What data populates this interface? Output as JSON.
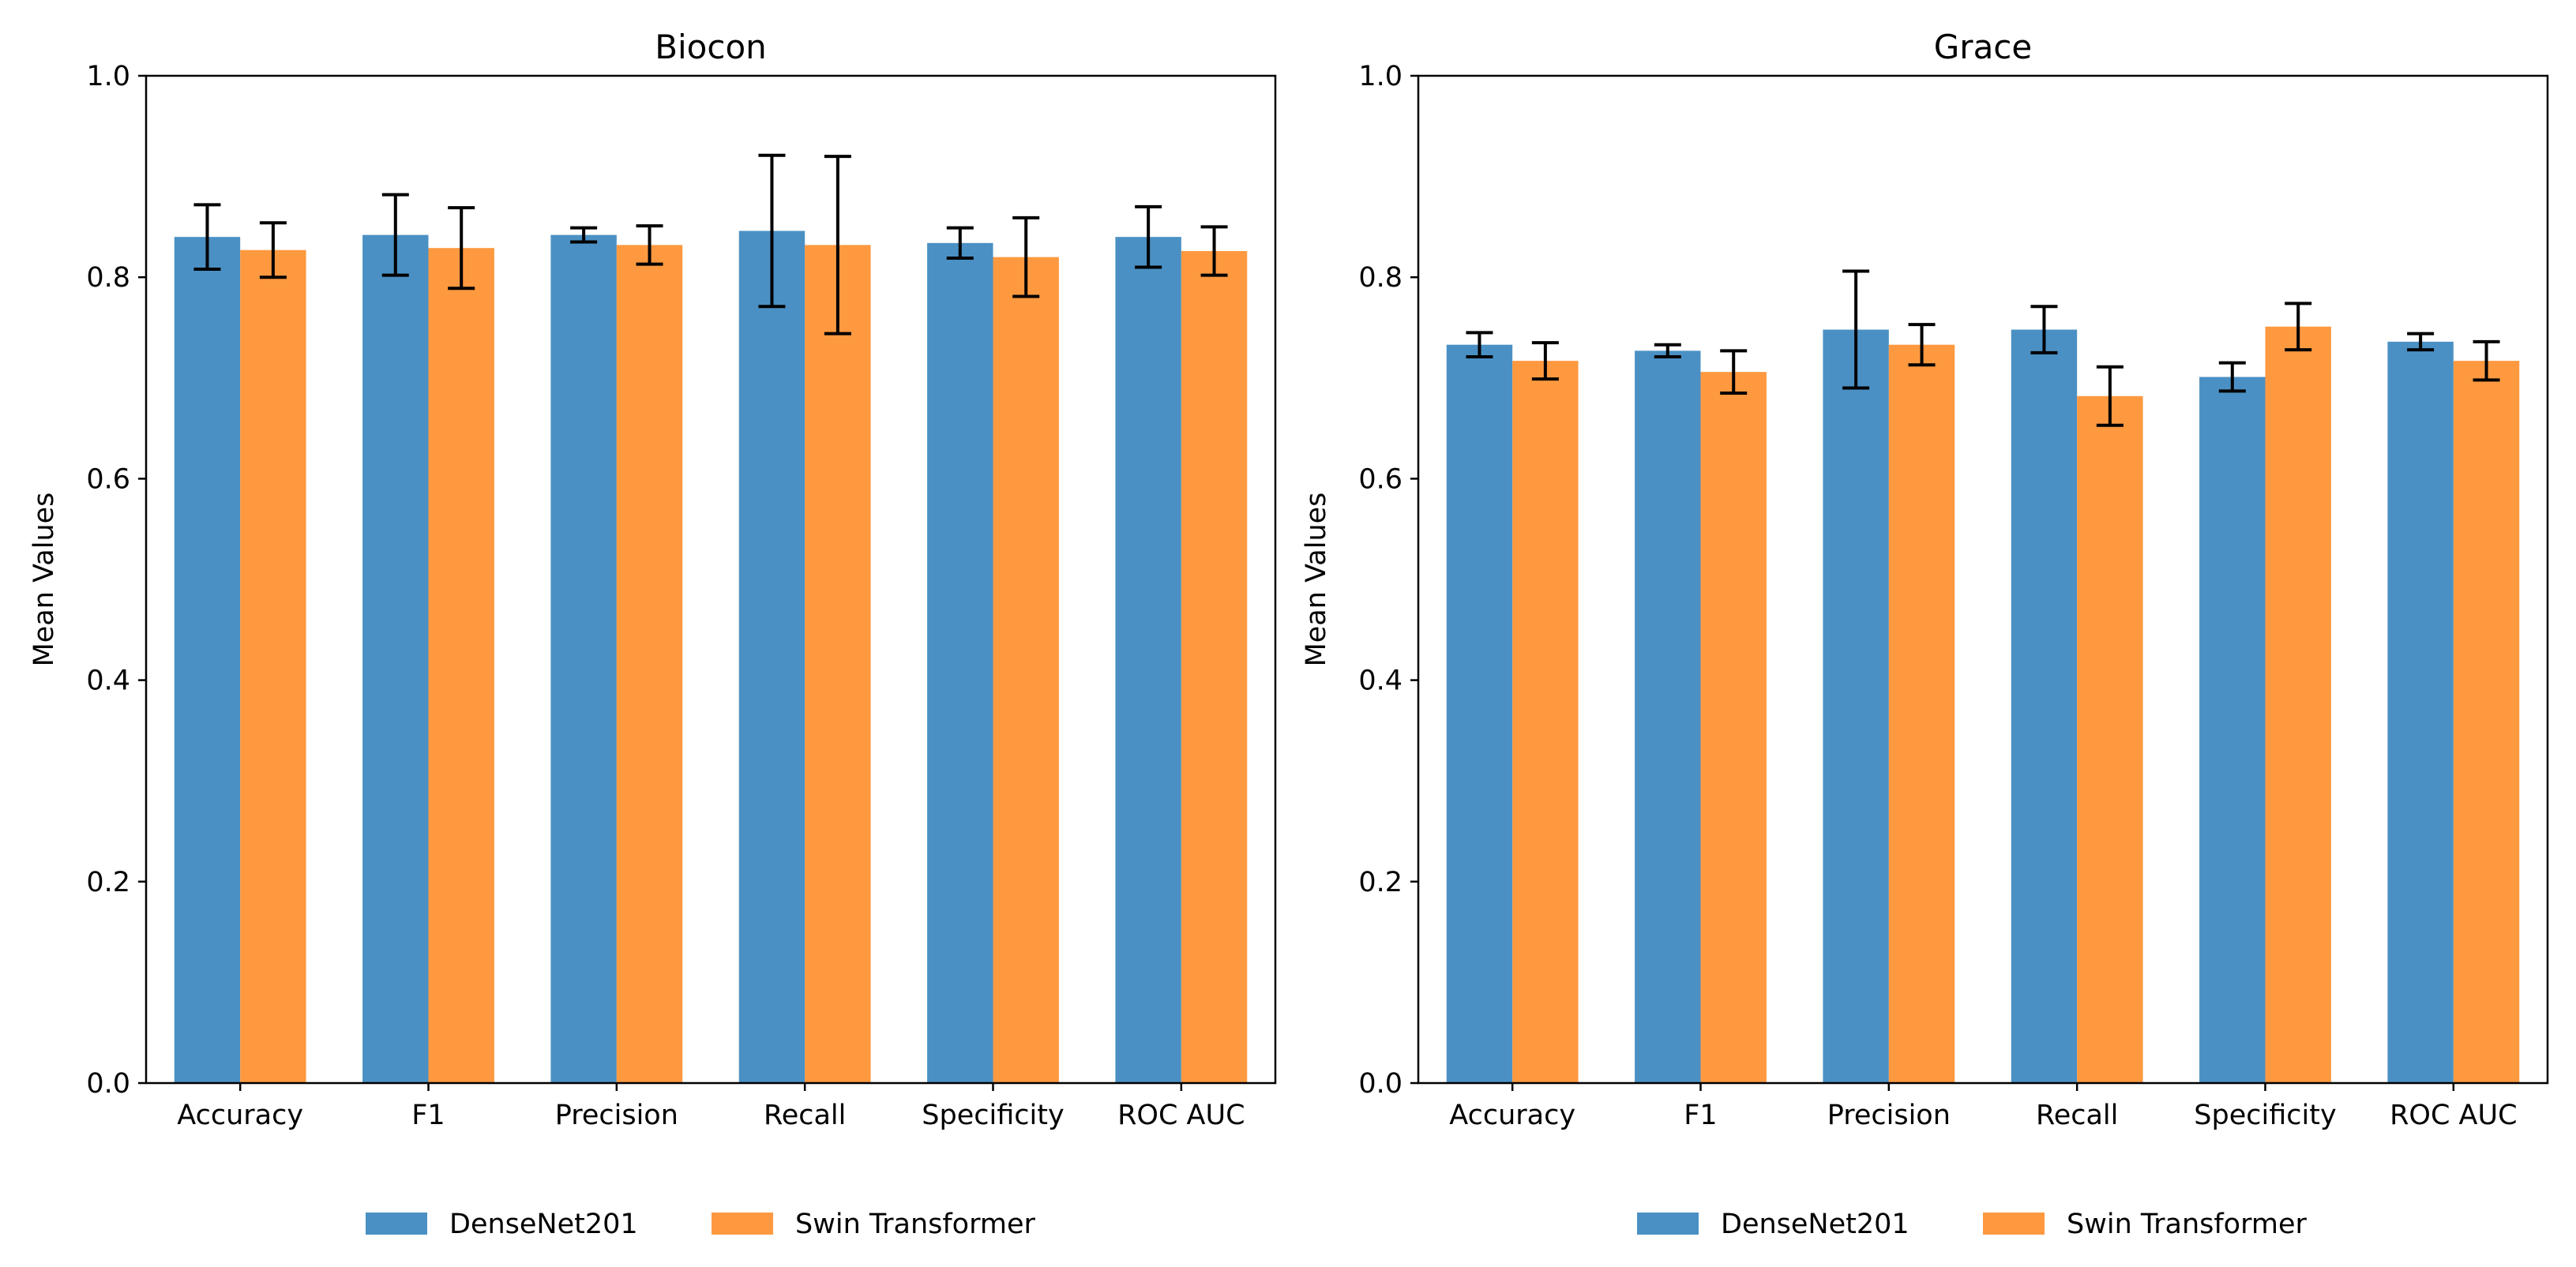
{
  "chart_data": [
    {
      "type": "bar",
      "title": "Biocon",
      "xlabel": "",
      "ylabel": "Mean Values",
      "ylim": [
        0,
        1.0
      ],
      "yticks": [
        "0.0",
        "0.2",
        "0.4",
        "0.6",
        "0.8",
        "1.0"
      ],
      "categories": [
        "Accuracy",
        "F1",
        "Precision",
        "Recall",
        "Specificity",
        "ROC AUC"
      ],
      "series": [
        {
          "name": "DenseNet201",
          "color": "#4a90c4",
          "values": [
            0.84,
            0.842,
            0.842,
            0.846,
            0.834,
            0.84
          ],
          "errors": [
            0.032,
            0.04,
            0.007,
            0.075,
            0.015,
            0.03
          ]
        },
        {
          "name": "Swin Transformer",
          "color": "#fe9940",
          "values": [
            0.827,
            0.829,
            0.832,
            0.832,
            0.82,
            0.826
          ],
          "errors": [
            0.027,
            0.04,
            0.019,
            0.088,
            0.039,
            0.024
          ]
        }
      ],
      "legend": "bottom-center"
    },
    {
      "type": "bar",
      "title": "Grace",
      "xlabel": "",
      "ylabel": "Mean Values",
      "ylim": [
        0,
        1.0
      ],
      "yticks": [
        "0.0",
        "0.2",
        "0.4",
        "0.6",
        "0.8",
        "1.0"
      ],
      "categories": [
        "Accuracy",
        "F1",
        "Precision",
        "Recall",
        "Specificity",
        "ROC AUC"
      ],
      "series": [
        {
          "name": "DenseNet201",
          "color": "#4a90c4",
          "values": [
            0.733,
            0.727,
            0.748,
            0.748,
            0.701,
            0.736
          ],
          "errors": [
            0.012,
            0.006,
            0.058,
            0.023,
            0.014,
            0.008
          ]
        },
        {
          "name": "Swin Transformer",
          "color": "#fe9940",
          "values": [
            0.717,
            0.706,
            0.733,
            0.682,
            0.751,
            0.717
          ],
          "errors": [
            0.018,
            0.021,
            0.02,
            0.029,
            0.023,
            0.019
          ]
        }
      ],
      "legend": "bottom-center"
    }
  ]
}
